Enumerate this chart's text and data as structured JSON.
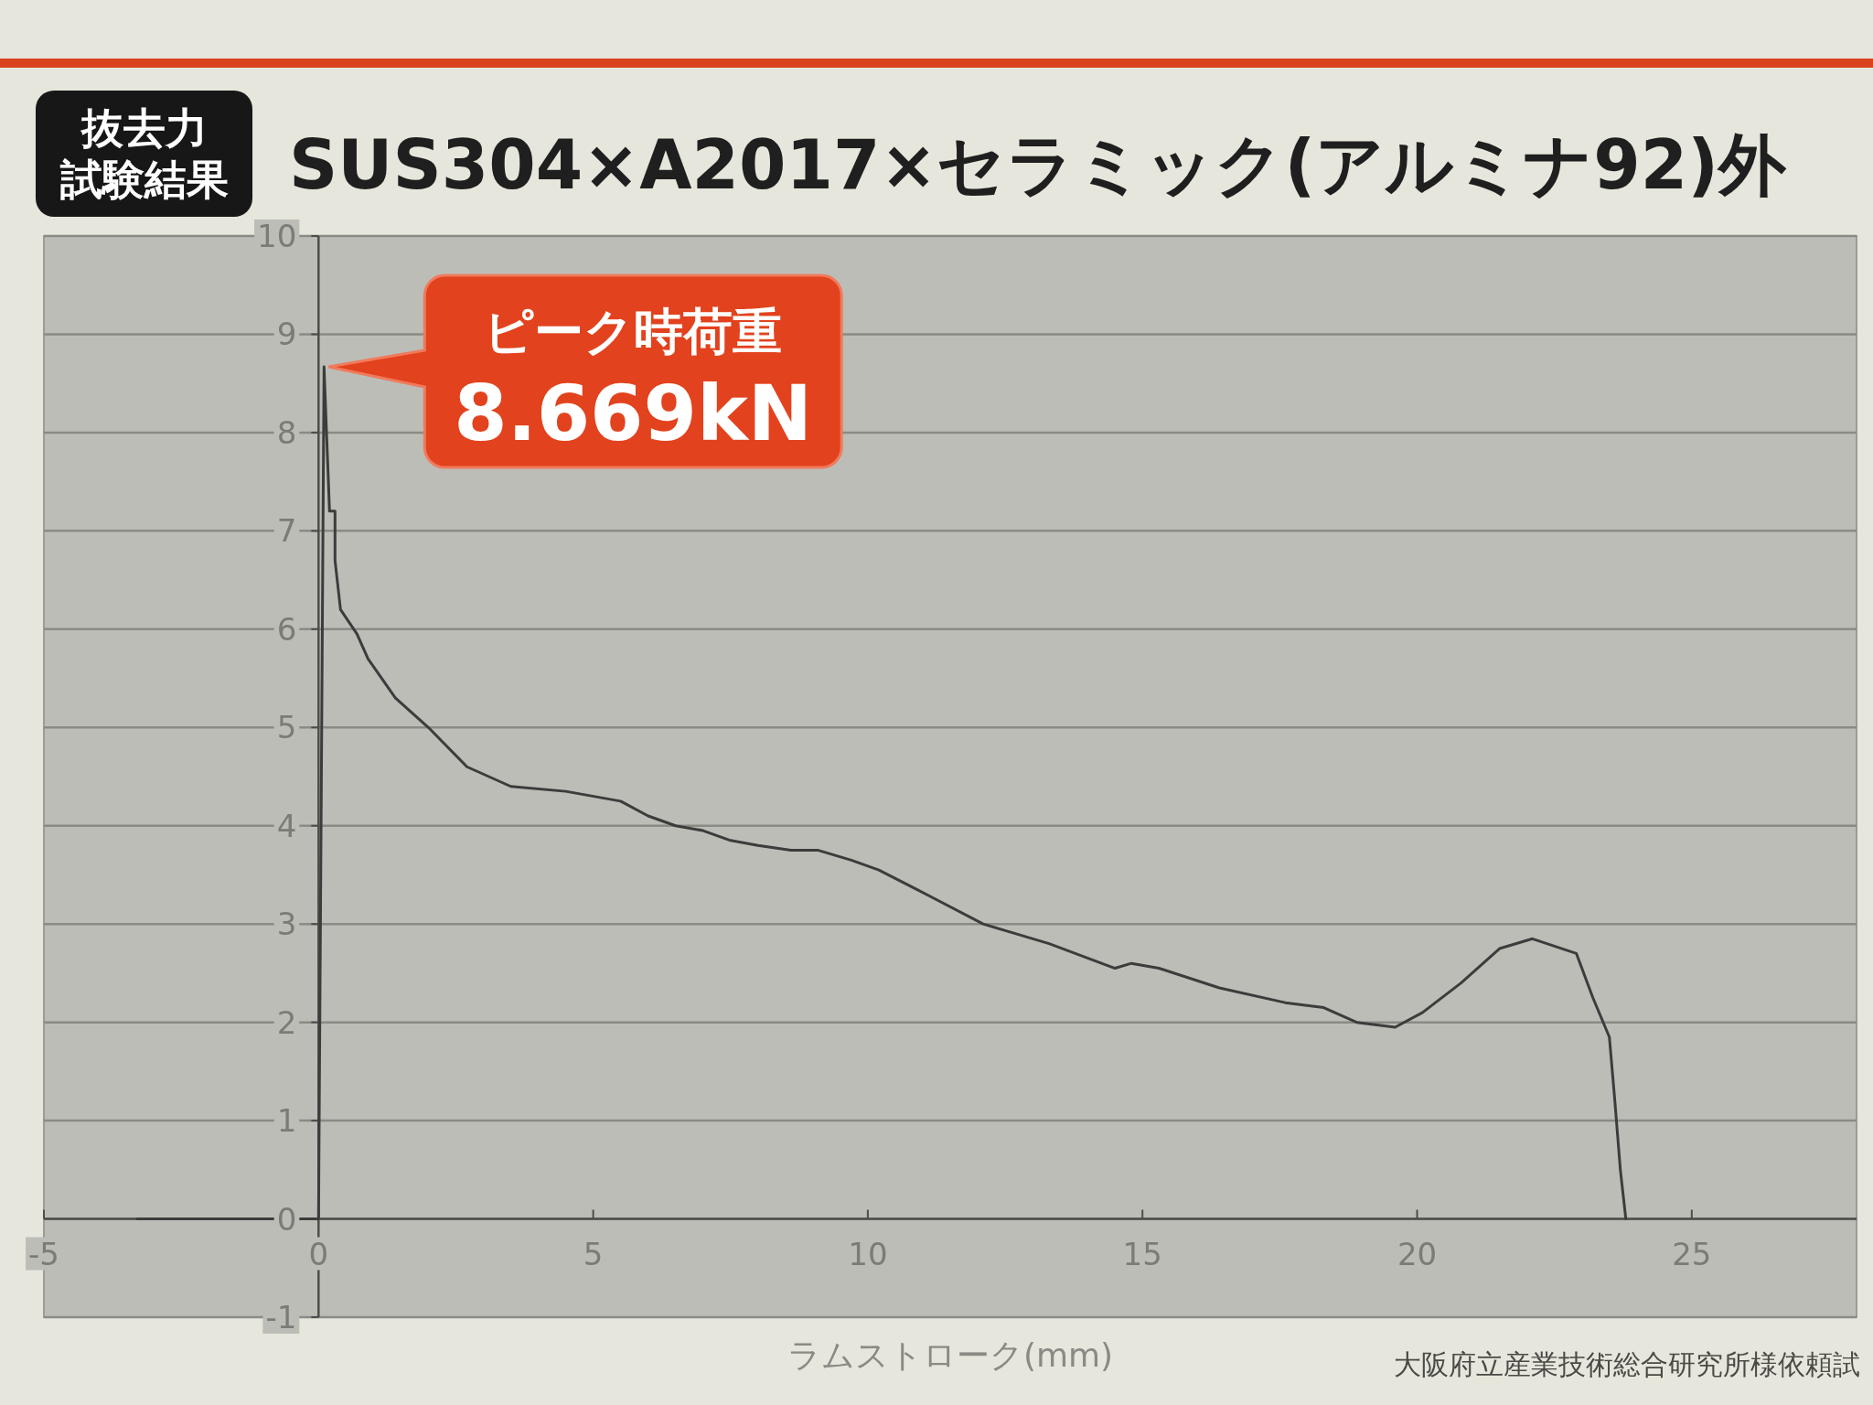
{
  "chart_data": {
    "type": "line",
    "title": "抜去力試験結果",
    "subtitle": "SUS304×A2017×セラミック(アルミナ92)外",
    "xlabel": "ラムストローク(mm)",
    "annotations": [
      {
        "text": "ピーク時荷重\n8.669kN",
        "x": 0.1,
        "y": 8.669
      },
      "大阪府立産業技術総合研究所様依頼試"
    ],
    "x": [
      -3.3,
      0,
      0.1,
      0.2,
      0.3,
      0.3,
      0.4,
      0.7,
      0.9,
      1.4,
      2.0,
      2.7,
      3.5,
      4.5,
      5.5,
      6.0,
      6.5,
      7.0,
      7.5,
      8.0,
      8.6,
      9.1,
      9.7,
      10.2,
      10.9,
      12.1,
      12.7,
      13.3,
      14.5,
      14.8,
      15.3,
      16.4,
      17.6,
      18.3,
      18.9,
      19.6,
      20.1,
      20.8,
      21.5,
      22.1,
      22.9,
      23.2,
      23.5,
      23.6,
      23.7,
      23.8
    ],
    "series": [
      {
        "color": "#3c3c3c",
        "values": [
          0,
          0,
          8.669,
          7.2,
          7.2,
          6.7,
          6.2,
          5.95,
          5.7,
          5.3,
          5.0,
          4.6,
          4.4,
          4.35,
          4.25,
          4.1,
          4.0,
          3.95,
          3.85,
          3.8,
          3.75,
          3.75,
          3.65,
          3.55,
          3.35,
          3.0,
          2.9,
          2.8,
          2.55,
          2.6,
          2.55,
          2.35,
          2.2,
          2.15,
          2.0,
          1.95,
          2.1,
          2.4,
          2.75,
          2.85,
          2.7,
          2.25,
          1.85,
          1.2,
          0.5,
          0
        ]
      }
    ],
    "xlim": [
      -5,
      28
    ],
    "xticks": [
      -5,
      0,
      5,
      10,
      15,
      20,
      25
    ],
    "ylim": [
      -1,
      10
    ],
    "yticks": [
      -1,
      0,
      1,
      2,
      3,
      4,
      5,
      6,
      7,
      8,
      9,
      10
    ],
    "grid": "y",
    "line_style": "solid"
  }
}
